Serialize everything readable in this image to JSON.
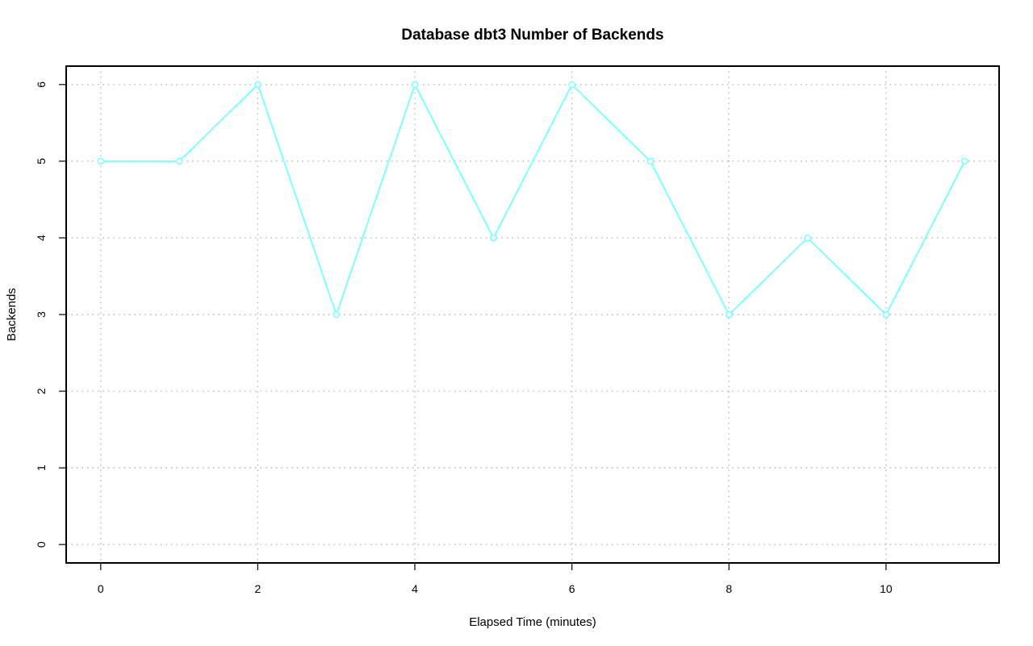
{
  "chart_data": {
    "type": "line",
    "title": "Database dbt3 Number of Backends",
    "xlabel": "Elapsed Time (minutes)",
    "ylabel": "Backends",
    "xlim": [
      -0.44,
      11.44
    ],
    "ylim": [
      -0.24,
      6.24
    ],
    "xticks": [
      0,
      2,
      4,
      6,
      8,
      10
    ],
    "yticks": [
      0,
      1,
      2,
      3,
      4,
      5,
      6
    ],
    "grid": true,
    "series": [
      {
        "color": "#7fffff",
        "marker": "circle",
        "x": [
          0,
          1,
          2,
          3,
          4,
          5,
          6,
          7,
          8,
          9,
          10,
          11
        ],
        "y": [
          5,
          5,
          6,
          3,
          6,
          4,
          6,
          5,
          3,
          4,
          3,
          5
        ]
      }
    ]
  }
}
